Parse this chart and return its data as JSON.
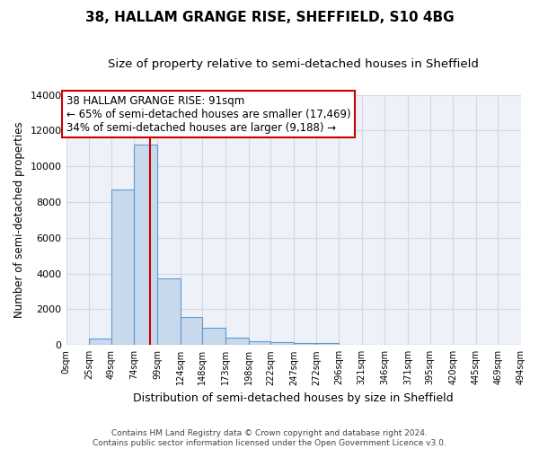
{
  "title1": "38, HALLAM GRANGE RISE, SHEFFIELD, S10 4BG",
  "title2": "Size of property relative to semi-detached houses in Sheffield",
  "xlabel": "Distribution of semi-detached houses by size in Sheffield",
  "ylabel": "Number of semi-detached properties",
  "bin_edges": [
    0,
    25,
    49,
    74,
    99,
    124,
    148,
    173,
    198,
    222,
    247,
    272,
    296,
    321,
    346,
    371,
    395,
    420,
    445,
    469,
    494
  ],
  "bar_heights": [
    0,
    350,
    8700,
    11200,
    3750,
    1550,
    950,
    400,
    200,
    150,
    100,
    100,
    0,
    0,
    0,
    0,
    0,
    0,
    0,
    0
  ],
  "bar_color": "#c8d9ec",
  "bar_edge_color": "#5b9bd5",
  "property_size": 91,
  "vline_color": "#cc0000",
  "annotation_line1": "38 HALLAM GRANGE RISE: 91sqm",
  "annotation_line2": "← 65% of semi-detached houses are smaller (17,469)",
  "annotation_line3": "34% of semi-detached houses are larger (9,188) →",
  "annotation_box_color": "#cc0000",
  "ylim": [
    0,
    14000
  ],
  "yticks": [
    0,
    2000,
    4000,
    6000,
    8000,
    10000,
    12000,
    14000
  ],
  "xtick_labels": [
    "0sqm",
    "25sqm",
    "49sqm",
    "74sqm",
    "99sqm",
    "124sqm",
    "148sqm",
    "173sqm",
    "198sqm",
    "222sqm",
    "247sqm",
    "272sqm",
    "296sqm",
    "321sqm",
    "346sqm",
    "371sqm",
    "395sqm",
    "420sqm",
    "445sqm",
    "469sqm",
    "494sqm"
  ],
  "grid_color": "#d0d8e4",
  "background_color": "#eef2f8",
  "footer_text": "Contains HM Land Registry data © Crown copyright and database right 2024.\nContains public sector information licensed under the Open Government Licence v3.0.",
  "title1_fontsize": 11,
  "title2_fontsize": 9.5,
  "xlabel_fontsize": 9,
  "ylabel_fontsize": 8.5,
  "annotation_fontsize": 8.5,
  "footer_fontsize": 6.5
}
